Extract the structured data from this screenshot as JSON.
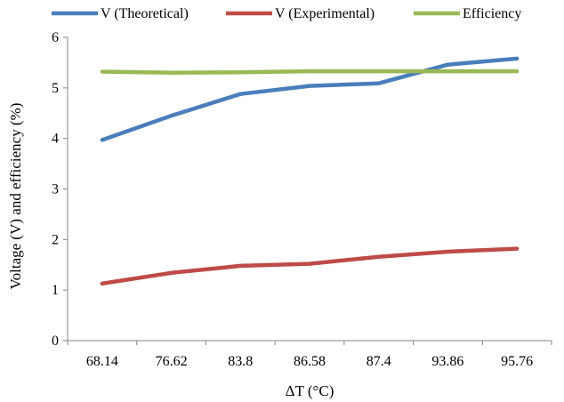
{
  "chart_data": {
    "type": "line",
    "xlabel": "ΔT (°C)",
    "ylabel": "Voltage (V) and efficiency (%)",
    "categories": [
      "68.14",
      "76.62",
      "83.8",
      "86.58",
      "87.4",
      "93.86",
      "95.76"
    ],
    "ylim": [
      0,
      6
    ],
    "yticks": [
      "0",
      "1",
      "2",
      "3",
      "4",
      "5",
      "6"
    ],
    "grid": false,
    "legend_position": "top",
    "series": [
      {
        "name": "V (Theoretical)",
        "color": "#4a7ebb",
        "values": [
          3.97,
          4.45,
          4.88,
          5.04,
          5.09,
          5.46,
          5.58
        ]
      },
      {
        "name": "V (Experimental)",
        "color": "#be4b48",
        "values": [
          1.13,
          1.34,
          1.48,
          1.52,
          1.66,
          1.76,
          1.82
        ]
      },
      {
        "name": "Efficiency",
        "color": "#98b954",
        "values": [
          5.32,
          5.3,
          5.31,
          5.33,
          5.33,
          5.33,
          5.33
        ]
      }
    ]
  }
}
